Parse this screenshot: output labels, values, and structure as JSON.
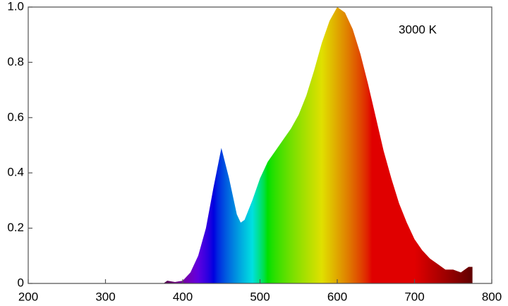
{
  "chart_data": {
    "type": "area",
    "annotation": "3000 K",
    "x": [
      375,
      380,
      390,
      400,
      410,
      420,
      430,
      440,
      450,
      460,
      470,
      475,
      480,
      490,
      500,
      510,
      520,
      530,
      540,
      550,
      560,
      570,
      580,
      590,
      600,
      610,
      620,
      630,
      640,
      650,
      660,
      670,
      680,
      690,
      700,
      710,
      720,
      730,
      740,
      750,
      760,
      770,
      775
    ],
    "values": [
      0,
      0.01,
      0.005,
      0.01,
      0.04,
      0.1,
      0.2,
      0.35,
      0.49,
      0.38,
      0.25,
      0.22,
      0.23,
      0.3,
      0.38,
      0.44,
      0.48,
      0.52,
      0.56,
      0.61,
      0.68,
      0.77,
      0.87,
      0.95,
      1.0,
      0.98,
      0.92,
      0.83,
      0.72,
      0.6,
      0.48,
      0.38,
      0.29,
      0.22,
      0.16,
      0.12,
      0.09,
      0.07,
      0.05,
      0.05,
      0.04,
      0.06,
      0.06
    ],
    "xlim": [
      200,
      800
    ],
    "xticks": [
      200,
      300,
      400,
      500,
      600,
      700,
      800
    ],
    "ylim": [
      0,
      1
    ],
    "yticks": [
      0,
      0.2,
      0.4,
      0.6,
      0.8,
      {
        "value": 1,
        "label": "1.0"
      }
    ],
    "fill": "wavelength"
  }
}
